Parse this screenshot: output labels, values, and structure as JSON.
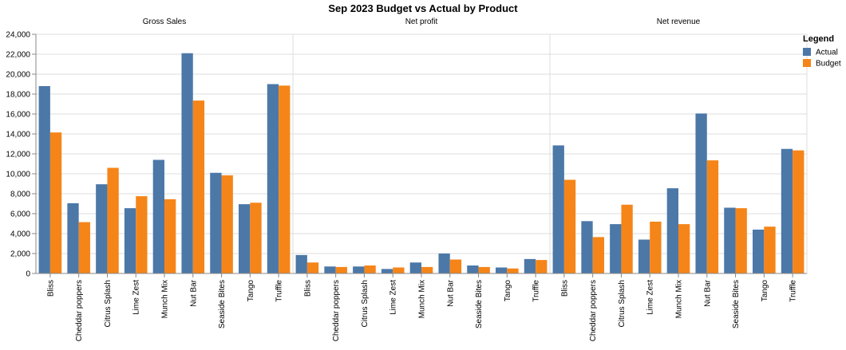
{
  "chart_data": {
    "type": "bar",
    "title": "Sep 2023 Budget vs Actual by Product",
    "categories": [
      "Bliss",
      "Cheddar poppers",
      "Citrus Splash",
      "Lime Zest",
      "Munch Mix",
      "Nut Bar",
      "Seaside Bites",
      "Tango",
      "Truffle"
    ],
    "y_ticks": [
      "0",
      "2,000",
      "4,000",
      "6,000",
      "8,000",
      "10,000",
      "12,000",
      "14,000",
      "16,000",
      "18,000",
      "20,000",
      "22,000",
      "24,000"
    ],
    "ylim": [
      0,
      24000
    ],
    "grid": true,
    "legend": {
      "title": "Legend",
      "position": "top-right",
      "items": [
        {
          "name": "Actual",
          "color": "#4c78a8"
        },
        {
          "name": "Budget",
          "color": "#f58518"
        }
      ]
    },
    "panels": [
      {
        "title": "Gross Sales",
        "series": [
          {
            "name": "Actual",
            "values": [
              18800,
              7050,
              8950,
              6550,
              11400,
              22100,
              10100,
              6950,
              19000
            ]
          },
          {
            "name": "Budget",
            "values": [
              14150,
              5150,
              10600,
              7750,
              7450,
              17350,
              9850,
              7100,
              18850
            ]
          }
        ]
      },
      {
        "title": "Net profit",
        "series": [
          {
            "name": "Actual",
            "values": [
              1850,
              700,
              700,
              450,
              1100,
              2000,
              800,
              600,
              1450
            ]
          },
          {
            "name": "Budget",
            "values": [
              1100,
              650,
              800,
              600,
              650,
              1400,
              650,
              500,
              1350
            ]
          }
        ]
      },
      {
        "title": "Net revenue",
        "series": [
          {
            "name": "Actual",
            "values": [
              12850,
              5250,
              4950,
              3400,
              8550,
              16050,
              6600,
              4400,
              12500
            ]
          },
          {
            "name": "Budget",
            "values": [
              9400,
              3650,
              6900,
              5200,
              4950,
              11350,
              6550,
              4700,
              12350
            ]
          }
        ]
      }
    ]
  }
}
